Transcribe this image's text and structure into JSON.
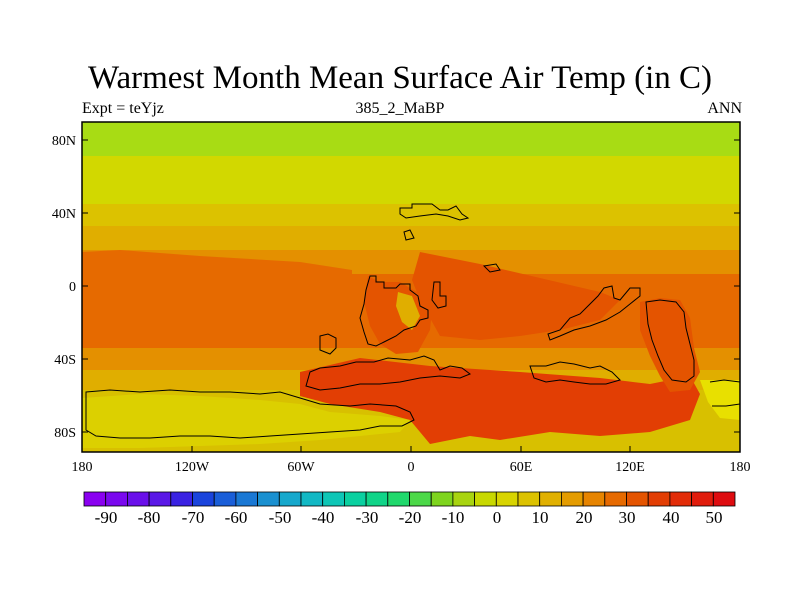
{
  "title": "Warmest Month Mean Surface Air Temp (in C)",
  "left_label": "Expt = teYjz",
  "center_label": "385_2_MaBP",
  "right_label": "ANN",
  "lat_ticks": [
    "80N",
    "40N",
    "0",
    "40S",
    "80S"
  ],
  "lon_ticks": [
    "180",
    "120W",
    "60W",
    "0",
    "60E",
    "120E",
    "180"
  ],
  "colorbar": {
    "labels": [
      "-90",
      "-80",
      "-70",
      "-60",
      "-50",
      "-40",
      "-30",
      "-20",
      "-10",
      "0",
      "10",
      "20",
      "30",
      "40",
      "50"
    ],
    "colors": [
      "#8a00f0",
      "#7a08ee",
      "#6a10ea",
      "#5a18e6",
      "#3a22e2",
      "#1a44dc",
      "#1a5ed8",
      "#1a78d4",
      "#1a90d0",
      "#16a8cc",
      "#12b8c4",
      "#0ec6b6",
      "#0ad0a0",
      "#10d488",
      "#20d86c",
      "#4cd848",
      "#7ed41e",
      "#a8d410",
      "#c8d800",
      "#d8d400",
      "#dcc200",
      "#e0b000",
      "#e49c00",
      "#e68400",
      "#e66a00",
      "#e45400",
      "#e23e04",
      "#e22c08",
      "#e01c0c",
      "#de0c10"
    ]
  },
  "map_colors": {
    "c80N": "#a8dc14",
    "c60N": "#d2d800",
    "c45N": "#dcc200",
    "c35N": "#e0ae00",
    "c25N": "#e49000",
    "c10": "#e66a00",
    "hot": "#e45400",
    "vhot": "#e23e04",
    "cool": "#d8c000",
    "cool2": "#dcd000",
    "ant": "#e8e000"
  }
}
